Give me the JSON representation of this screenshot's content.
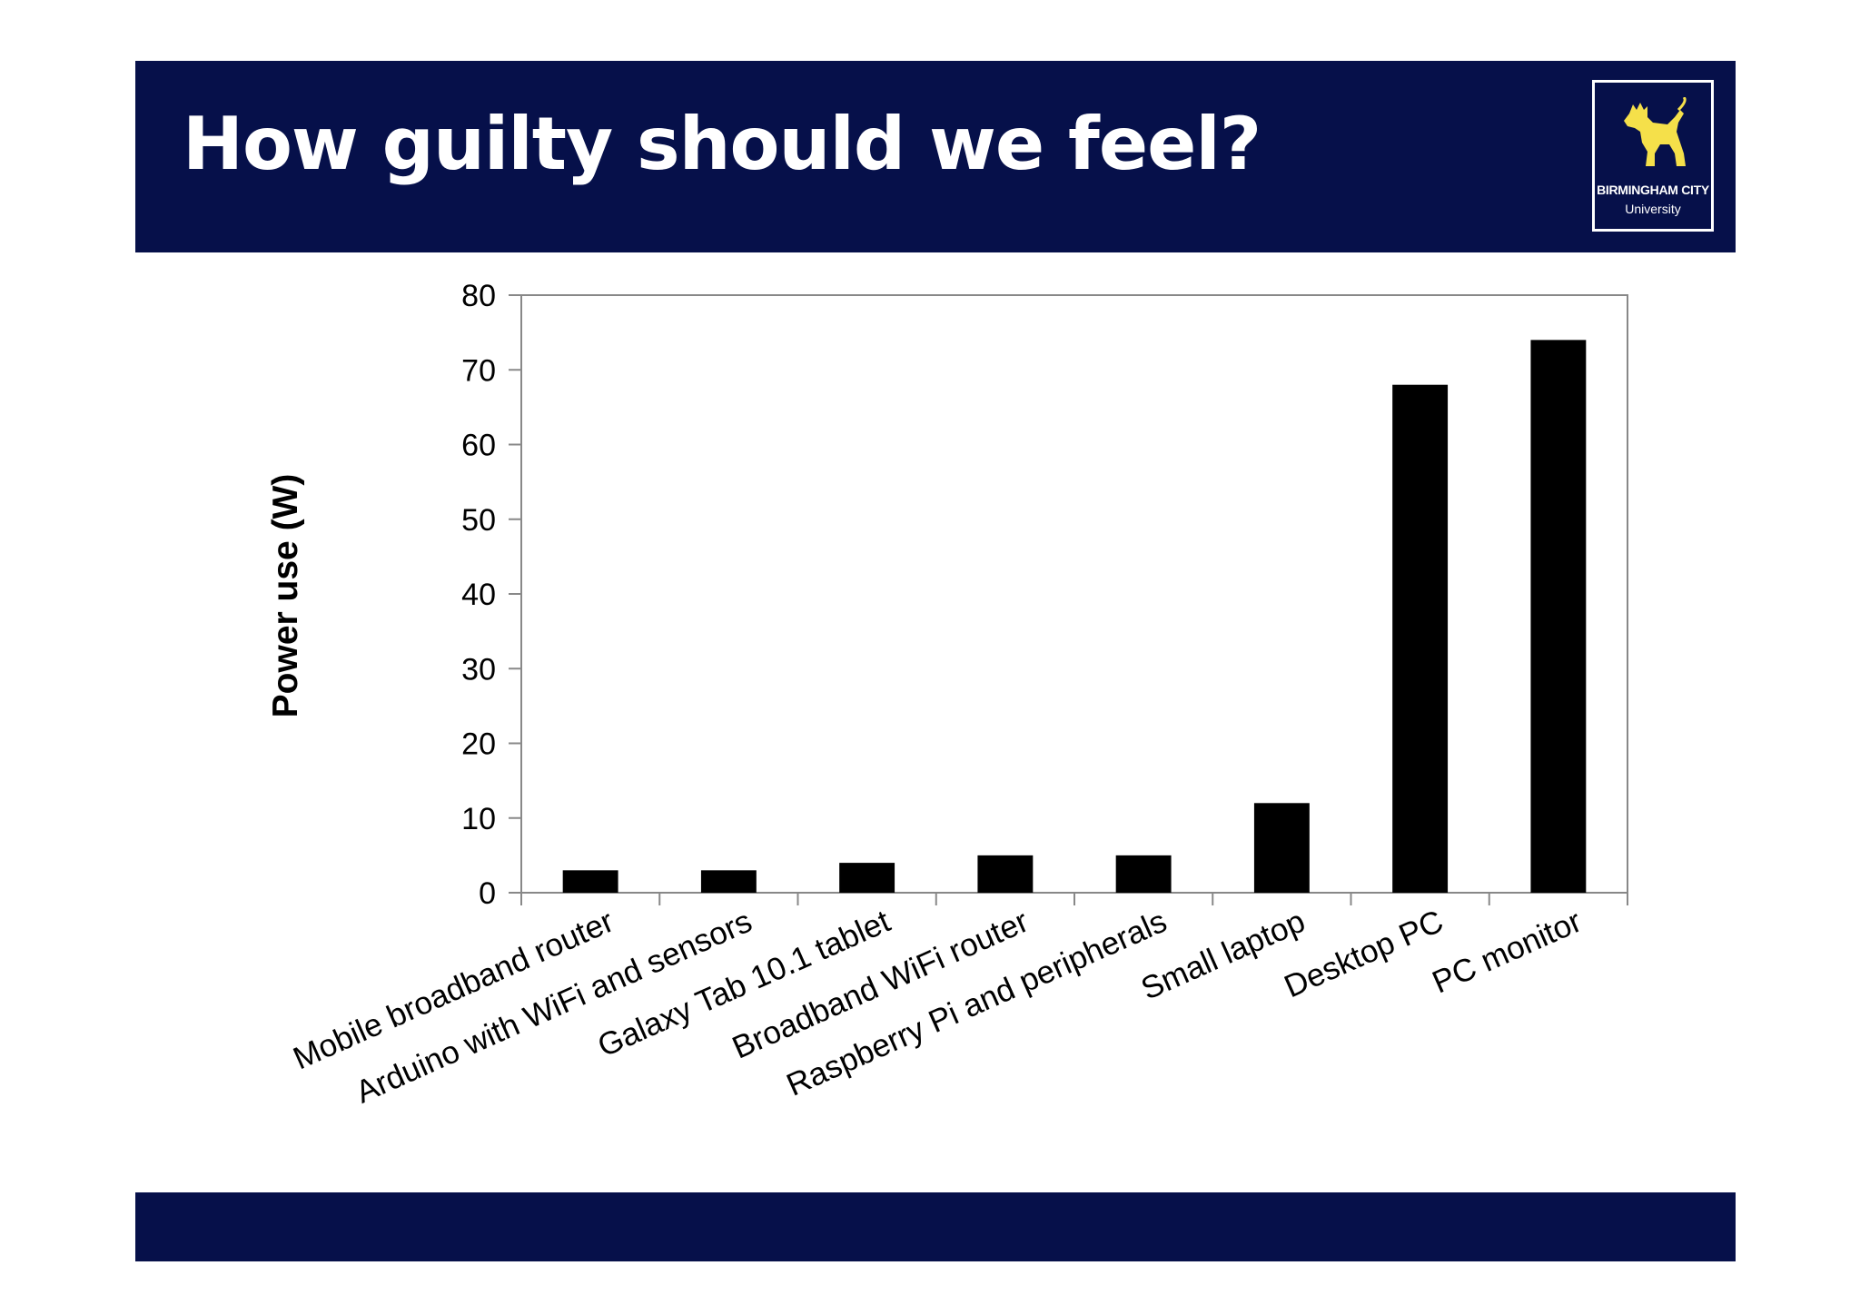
{
  "slide": {
    "title": "How guilty should we feel?",
    "logo": {
      "name": "BIRMINGHAM CITY",
      "subtitle": "University",
      "icon": "lion-crest-icon",
      "accent_color": "#f5e04a"
    },
    "band_color": "#06104a"
  },
  "chart_data": {
    "type": "bar",
    "title": "",
    "xlabel": "",
    "ylabel": "Power use (W)",
    "ylim": [
      0,
      80
    ],
    "yticks": [
      0,
      10,
      20,
      30,
      40,
      50,
      60,
      70,
      80
    ],
    "grid": false,
    "legend": "none",
    "bar_color": "#000000",
    "categories": [
      "Mobile broadband router",
      "Arduino with WiFi and sensors",
      "Galaxy Tab 10.1 tablet",
      "Broadband WiFi router",
      "Raspberry Pi and peripherals",
      "Small laptop",
      "Desktop PC",
      "PC monitor"
    ],
    "values": [
      3,
      3,
      4,
      5,
      5,
      12,
      68,
      74
    ]
  }
}
